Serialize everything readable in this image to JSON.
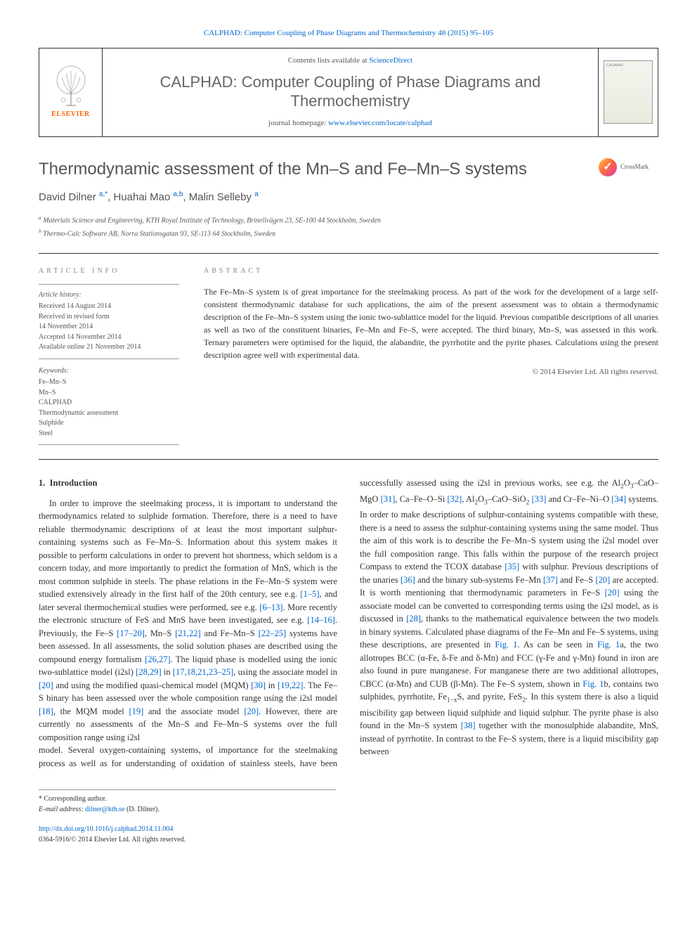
{
  "colors": {
    "link": "#0066cc",
    "elsevier_orange": "#ff6600",
    "text": "#333333",
    "muted": "#555555",
    "rule": "#333333"
  },
  "header": {
    "citation": "CALPHAD: Computer Coupling of Phase Diagrams and Thermochemistry 48 (2015) 95–105",
    "contents_prefix": "Contents lists available at ",
    "contents_link": "ScienceDirect",
    "journal_title": "CALPHAD: Computer Coupling of Phase Diagrams and Thermochemistry",
    "homepage_prefix": "journal homepage: ",
    "homepage_url": "www.elsevier.com/locate/calphad",
    "elsevier": "ELSEVIER",
    "cover_label": "CALPHAD",
    "crossmark": "CrossMark"
  },
  "article": {
    "title": "Thermodynamic assessment of the Mn–S and Fe–Mn–S systems",
    "authors_html": "David Dilner <sup><a href=\"#\">a</a>,<a href=\"#\">*</a></sup>, Huahai Mao <sup><a href=\"#\">a</a>,<a href=\"#\">b</a></sup>, Malin Selleby <sup><a href=\"#\">a</a></sup>",
    "affiliations": [
      "a Materials Science and Engineering, KTH Royal Institute of Technology, Brinellvägen 23, SE-100 44 Stockholm, Sweden",
      "b Thermo-Calc Software AB, Norra Stationsgatan 93, SE-113 64 Stockholm, Sweden"
    ]
  },
  "info": {
    "heading": "article info",
    "history_label": "Article history:",
    "history": [
      "Received 14 August 2014",
      "Received in revised form",
      "14 November 2014",
      "Accepted 14 November 2014",
      "Available online 21 November 2014"
    ],
    "keywords_label": "Keywords:",
    "keywords": [
      "Fe–Mn–S",
      "Mn–S",
      "CALPHAD",
      "Thermodynamic assessment",
      "Sulphide",
      "Steel"
    ]
  },
  "abstract": {
    "heading": "abstract",
    "text": "The Fe–Mn–S system is of great importance for the steelmaking process. As part of the work for the development of a large self-consistent thermodynamic database for such applications, the aim of the present assessment was to obtain a thermodynamic description of the Fe–Mn–S system using the ionic two-sublattice model for the liquid. Previous compatible descriptions of all unaries as well as two of the constituent binaries, Fe–Mn and Fe–S, were accepted. The third binary, Mn–S, was assessed in this work. Ternary parameters were optimised for the liquid, the alabandite, the pyrrhotite and the pyrite phases. Calculations using the present description agree well with experimental data.",
    "copyright": "© 2014 Elsevier Ltd. All rights reserved."
  },
  "body": {
    "section_number": "1.",
    "section_title": "Introduction",
    "para1_html": "In order to improve the steelmaking process, it is important to understand the thermodynamics related to sulphide formation. Therefore, there is a need to have reliable thermodynamic descriptions of at least the most important sulphur-containing systems such as Fe–Mn–S. Information about this system makes it possible to perform calculations in order to prevent hot shortness, which seldom is a concern today, and more importantly to predict the formation of MnS, which is the most common sulphide in steels. The phase relations in the Fe–Mn–S system were studied extensively already in the first half of the 20th century, see e.g. <a href=\"#\">[1–5]</a>, and later several thermochemical studies were performed, see e.g. <a href=\"#\">[6–13]</a>. More recently the electronic structure of FeS and MnS have been investigated, see e.g. <a href=\"#\">[14–16]</a>. Previously, the Fe–S <a href=\"#\">[17–20]</a>, Mn–S <a href=\"#\">[21,22]</a> and Fe–Mn–S <a href=\"#\">[22–25]</a> systems have been assessed. In all assessments, the solid solution phases are described using the compound energy formalism <a href=\"#\">[26,27]</a>. The liquid phase is modelled using the ionic two-sublattice model (i2sl) <a href=\"#\">[28,29]</a> in <a href=\"#\">[17,18,21,23–25]</a>, using the associate model in <a href=\"#\">[20]</a> and using the modified quasi-chemical model (MQM) <a href=\"#\">[30]</a> in <a href=\"#\">[19,22]</a>. The Fe–S binary has been assessed over the whole composition range using the i2sl model <a href=\"#\">[18]</a>, the MQM model <a href=\"#\">[19]</a> and the associate model <a href=\"#\">[20]</a>. However, there are currently no assessments of the Mn–S and Fe–Mn–S systems over the full composition range using i2sl",
    "para2_html": "model. Several oxygen-containing systems, of importance for the steelmaking process as well as for understanding of oxidation of stainless steels, have been successfully assessed using the i2sl in previous works, see e.g. the Al<sub>2</sub>O<sub>3</sub>–CaO–MgO <a href=\"#\">[31]</a>, Ca–Fe–O–Si <a href=\"#\">[32]</a>, Al<sub>2</sub>O<sub>3</sub>–CaO–SiO<sub>2</sub> <a href=\"#\">[33]</a> and Cr–Fe–Ni–O <a href=\"#\">[34]</a> systems. In order to make descriptions of sulphur-containing systems compatible with these, there is a need to assess the sulphur-containing systems using the same model. Thus the aim of this work is to describe the Fe–Mn–S system using the i2sl model over the full composition range. This falls within the purpose of the research project Compass to extend the TCOX database <a href=\"#\">[35]</a> with sulphur. Previous descriptions of the unaries <a href=\"#\">[36]</a> and the binary sub-systems Fe–Mn <a href=\"#\">[37]</a> and Fe–S <a href=\"#\">[20]</a> are accepted. It is worth mentioning that thermodynamic parameters in Fe–S <a href=\"#\">[20]</a> using the associate model can be converted to corresponding terms using the i2sl model, as is discussed in <a href=\"#\">[28]</a>, thanks to the mathematical equivalence between the two models in binary systems. Calculated phase diagrams of the Fe–Mn and Fe–S systems, using these descriptions, are presented in <a href=\"#\">Fig. 1</a>. As can be seen in <a href=\"#\">Fig. 1</a>a, the two allotropes BCC (α-Fe, δ-Fe and δ-Mn) and FCC (γ-Fe and γ-Mn) found in iron are also found in pure manganese. For manganese there are two additional allotropes, CBCC (α-Mn) and CUB (β-Mn). The Fe–S system, shown in <a href=\"#\">Fig. 1</a>b, contains two sulphides, pyrrhotite, Fe<sub>1−x</sub>S, and pyrite, FeS<sub>2</sub>. In this system there is also a liquid miscibility gap between liquid sulphide and liquid sulphur. The pyrite phase is also found in the Mn–S system <a href=\"#\">[38]</a> together with the monosulphide alabandite, MnS, instead of pyrrhotite. In contrast to the Fe–S system, there is a liquid miscibility gap between"
  },
  "footer": {
    "corresponding": "* Corresponding author.",
    "email_label": "E-mail address: ",
    "email": "dilner@kth.se",
    "email_suffix": " (D. Dilner).",
    "doi": "http://dx.doi.org/10.1016/j.calphad.2014.11.004",
    "issn_line": "0364-5916/© 2014 Elsevier Ltd. All rights reserved."
  }
}
